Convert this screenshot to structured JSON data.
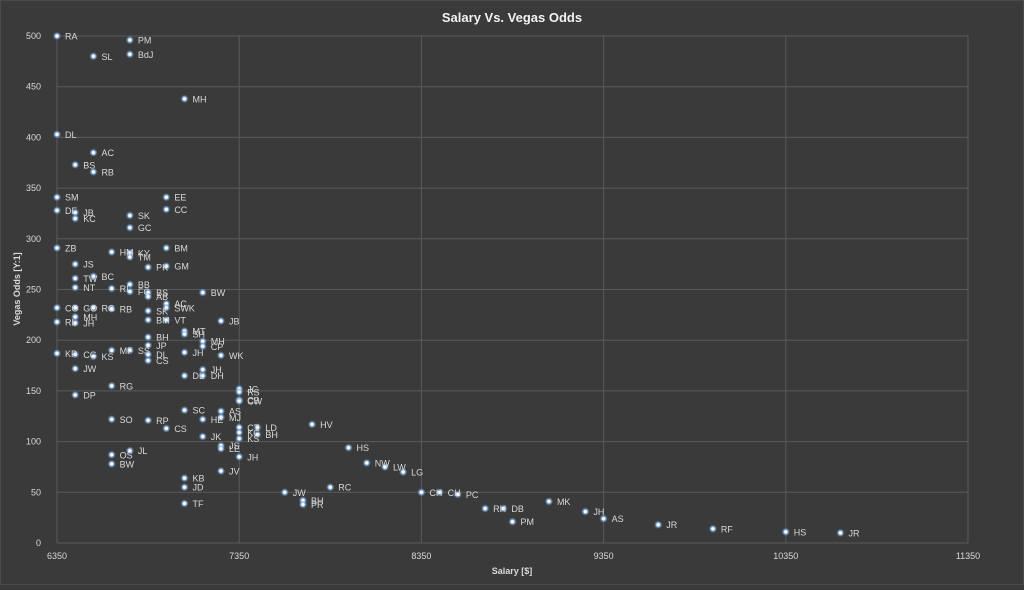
{
  "colors": {
    "background": "#3a3a3a",
    "gridline": "#5a5a5a",
    "text": "#d9d9d9",
    "title": "#f2f2f2",
    "marker": "#5b9bd5",
    "marker_glow": "#9cc3ee"
  },
  "chart_data": {
    "type": "scatter",
    "title": "Salary Vs. Vegas Odds",
    "xlabel": "Salary [$]",
    "ylabel": "Vegas Odds [Y:1]",
    "xlim": [
      6350,
      11350
    ],
    "ylim": [
      0,
      500
    ],
    "x_ticks": [
      6350,
      7350,
      8350,
      9350,
      10350,
      11350
    ],
    "y_ticks": [
      0,
      50,
      100,
      150,
      200,
      250,
      300,
      350,
      400,
      450,
      500
    ],
    "grid": true,
    "legend": "none",
    "points": [
      {
        "x": 6350,
        "y": 500,
        "label": "RA"
      },
      {
        "x": 6750,
        "y": 496,
        "label": "PM"
      },
      {
        "x": 6550,
        "y": 480,
        "label": "SL"
      },
      {
        "x": 6750,
        "y": 482,
        "label": "BdJ"
      },
      {
        "x": 7050,
        "y": 438,
        "label": "MH"
      },
      {
        "x": 6350,
        "y": 403,
        "label": "DL"
      },
      {
        "x": 6550,
        "y": 385,
        "label": "AC"
      },
      {
        "x": 6450,
        "y": 373,
        "label": "BS"
      },
      {
        "x": 6550,
        "y": 366,
        "label": "RB"
      },
      {
        "x": 6350,
        "y": 341,
        "label": "SM"
      },
      {
        "x": 6950,
        "y": 341,
        "label": "EE"
      },
      {
        "x": 6350,
        "y": 328,
        "label": "DF"
      },
      {
        "x": 6450,
        "y": 326,
        "label": "JB"
      },
      {
        "x": 6450,
        "y": 320,
        "label": "KC"
      },
      {
        "x": 6750,
        "y": 323,
        "label": "SK"
      },
      {
        "x": 6950,
        "y": 329,
        "label": "CC"
      },
      {
        "x": 6750,
        "y": 311,
        "label": "GC"
      },
      {
        "x": 6350,
        "y": 291,
        "label": "ZB"
      },
      {
        "x": 6650,
        "y": 287,
        "label": "HM"
      },
      {
        "x": 6750,
        "y": 286,
        "label": "KY"
      },
      {
        "x": 6750,
        "y": 282,
        "label": "TM"
      },
      {
        "x": 6950,
        "y": 291,
        "label": "BM"
      },
      {
        "x": 6450,
        "y": 275,
        "label": "JS"
      },
      {
        "x": 6850,
        "y": 272,
        "label": "PK"
      },
      {
        "x": 6950,
        "y": 273,
        "label": "GM"
      },
      {
        "x": 6450,
        "y": 261,
        "label": "TW"
      },
      {
        "x": 6550,
        "y": 263,
        "label": "BC"
      },
      {
        "x": 6450,
        "y": 252,
        "label": "NT"
      },
      {
        "x": 6650,
        "y": 251,
        "label": "RI"
      },
      {
        "x": 6750,
        "y": 255,
        "label": "BB"
      },
      {
        "x": 6750,
        "y": 248,
        "label": "FC"
      },
      {
        "x": 6850,
        "y": 247,
        "label": "BS"
      },
      {
        "x": 6850,
        "y": 243,
        "label": "AB"
      },
      {
        "x": 7150,
        "y": 247,
        "label": "BW"
      },
      {
        "x": 6950,
        "y": 236,
        "label": "AC"
      },
      {
        "x": 6950,
        "y": 232,
        "label": "SWK"
      },
      {
        "x": 6350,
        "y": 232,
        "label": "CO"
      },
      {
        "x": 6450,
        "y": 232,
        "label": "GO"
      },
      {
        "x": 6550,
        "y": 232,
        "label": "RG"
      },
      {
        "x": 6650,
        "y": 231,
        "label": "RB"
      },
      {
        "x": 6850,
        "y": 229,
        "label": "SK"
      },
      {
        "x": 6450,
        "y": 223,
        "label": "MH"
      },
      {
        "x": 6850,
        "y": 220,
        "label": "BM"
      },
      {
        "x": 6950,
        "y": 220,
        "label": "VT"
      },
      {
        "x": 7250,
        "y": 219,
        "label": "JB"
      },
      {
        "x": 6350,
        "y": 218,
        "label": "RL"
      },
      {
        "x": 6450,
        "y": 217,
        "label": "JH"
      },
      {
        "x": 7050,
        "y": 209,
        "label": "MT"
      },
      {
        "x": 7050,
        "y": 206,
        "label": "SH"
      },
      {
        "x": 6850,
        "y": 203,
        "label": "BH"
      },
      {
        "x": 7150,
        "y": 199,
        "label": "MH"
      },
      {
        "x": 6850,
        "y": 195,
        "label": "JP"
      },
      {
        "x": 7150,
        "y": 194,
        "label": "CP"
      },
      {
        "x": 6350,
        "y": 187,
        "label": "KP"
      },
      {
        "x": 6450,
        "y": 186,
        "label": "CG"
      },
      {
        "x": 6650,
        "y": 190,
        "label": "MF"
      },
      {
        "x": 6750,
        "y": 190,
        "label": "SS"
      },
      {
        "x": 6850,
        "y": 186,
        "label": "DL"
      },
      {
        "x": 7050,
        "y": 188,
        "label": "JH"
      },
      {
        "x": 7250,
        "y": 185,
        "label": "WK"
      },
      {
        "x": 6550,
        "y": 184,
        "label": "KS"
      },
      {
        "x": 6850,
        "y": 180,
        "label": "CS"
      },
      {
        "x": 6450,
        "y": 172,
        "label": "JW"
      },
      {
        "x": 7150,
        "y": 171,
        "label": "JH"
      },
      {
        "x": 7050,
        "y": 165,
        "label": "DL"
      },
      {
        "x": 7150,
        "y": 165,
        "label": "DH"
      },
      {
        "x": 6650,
        "y": 155,
        "label": "RG"
      },
      {
        "x": 7350,
        "y": 152,
        "label": "JC"
      },
      {
        "x": 7350,
        "y": 149,
        "label": "RS"
      },
      {
        "x": 6450,
        "y": 146,
        "label": "DP"
      },
      {
        "x": 7350,
        "y": 141,
        "label": "CB"
      },
      {
        "x": 7350,
        "y": 140,
        "label": "CW"
      },
      {
        "x": 7050,
        "y": 131,
        "label": "SC"
      },
      {
        "x": 7250,
        "y": 130,
        "label": "AS"
      },
      {
        "x": 6650,
        "y": 122,
        "label": "SO"
      },
      {
        "x": 6850,
        "y": 121,
        "label": "RP"
      },
      {
        "x": 7150,
        "y": 122,
        "label": "HE"
      },
      {
        "x": 7250,
        "y": 124,
        "label": "MJ"
      },
      {
        "x": 6950,
        "y": 113,
        "label": "CS"
      },
      {
        "x": 7350,
        "y": 114,
        "label": "CT"
      },
      {
        "x": 7450,
        "y": 114,
        "label": "LD"
      },
      {
        "x": 7750,
        "y": 117,
        "label": "HV"
      },
      {
        "x": 7350,
        "y": 109,
        "label": "KG"
      },
      {
        "x": 7450,
        "y": 107,
        "label": "BH"
      },
      {
        "x": 7150,
        "y": 105,
        "label": "JK"
      },
      {
        "x": 7350,
        "y": 103,
        "label": "KS"
      },
      {
        "x": 7250,
        "y": 96,
        "label": "JS"
      },
      {
        "x": 7250,
        "y": 93,
        "label": "LE"
      },
      {
        "x": 7950,
        "y": 94,
        "label": "HS"
      },
      {
        "x": 6750,
        "y": 91,
        "label": "JL"
      },
      {
        "x": 6650,
        "y": 87,
        "label": "OS"
      },
      {
        "x": 7350,
        "y": 85,
        "label": "JH"
      },
      {
        "x": 8050,
        "y": 79,
        "label": "NW"
      },
      {
        "x": 6650,
        "y": 78,
        "label": "BW"
      },
      {
        "x": 8150,
        "y": 75,
        "label": "LW"
      },
      {
        "x": 7250,
        "y": 71,
        "label": "JV"
      },
      {
        "x": 8250,
        "y": 70,
        "label": "LG"
      },
      {
        "x": 7050,
        "y": 64,
        "label": "KB"
      },
      {
        "x": 7050,
        "y": 55,
        "label": "JD"
      },
      {
        "x": 7850,
        "y": 55,
        "label": "RC"
      },
      {
        "x": 7600,
        "y": 50,
        "label": "JW"
      },
      {
        "x": 8350,
        "y": 50,
        "label": "CH"
      },
      {
        "x": 8450,
        "y": 50,
        "label": "CH"
      },
      {
        "x": 8550,
        "y": 48,
        "label": "PC"
      },
      {
        "x": 9050,
        "y": 41,
        "label": "MK"
      },
      {
        "x": 7700,
        "y": 42,
        "label": "BH"
      },
      {
        "x": 7700,
        "y": 38,
        "label": "PR"
      },
      {
        "x": 7050,
        "y": 39,
        "label": "TF"
      },
      {
        "x": 8700,
        "y": 34,
        "label": "RH"
      },
      {
        "x": 8800,
        "y": 34,
        "label": "DB"
      },
      {
        "x": 9250,
        "y": 31,
        "label": "JH"
      },
      {
        "x": 8850,
        "y": 21,
        "label": "PM"
      },
      {
        "x": 9350,
        "y": 24,
        "label": "AS"
      },
      {
        "x": 9650,
        "y": 18,
        "label": "JR"
      },
      {
        "x": 9950,
        "y": 14,
        "label": "RF"
      },
      {
        "x": 10350,
        "y": 11,
        "label": "HS"
      },
      {
        "x": 10650,
        "y": 10,
        "label": "JR"
      }
    ]
  }
}
